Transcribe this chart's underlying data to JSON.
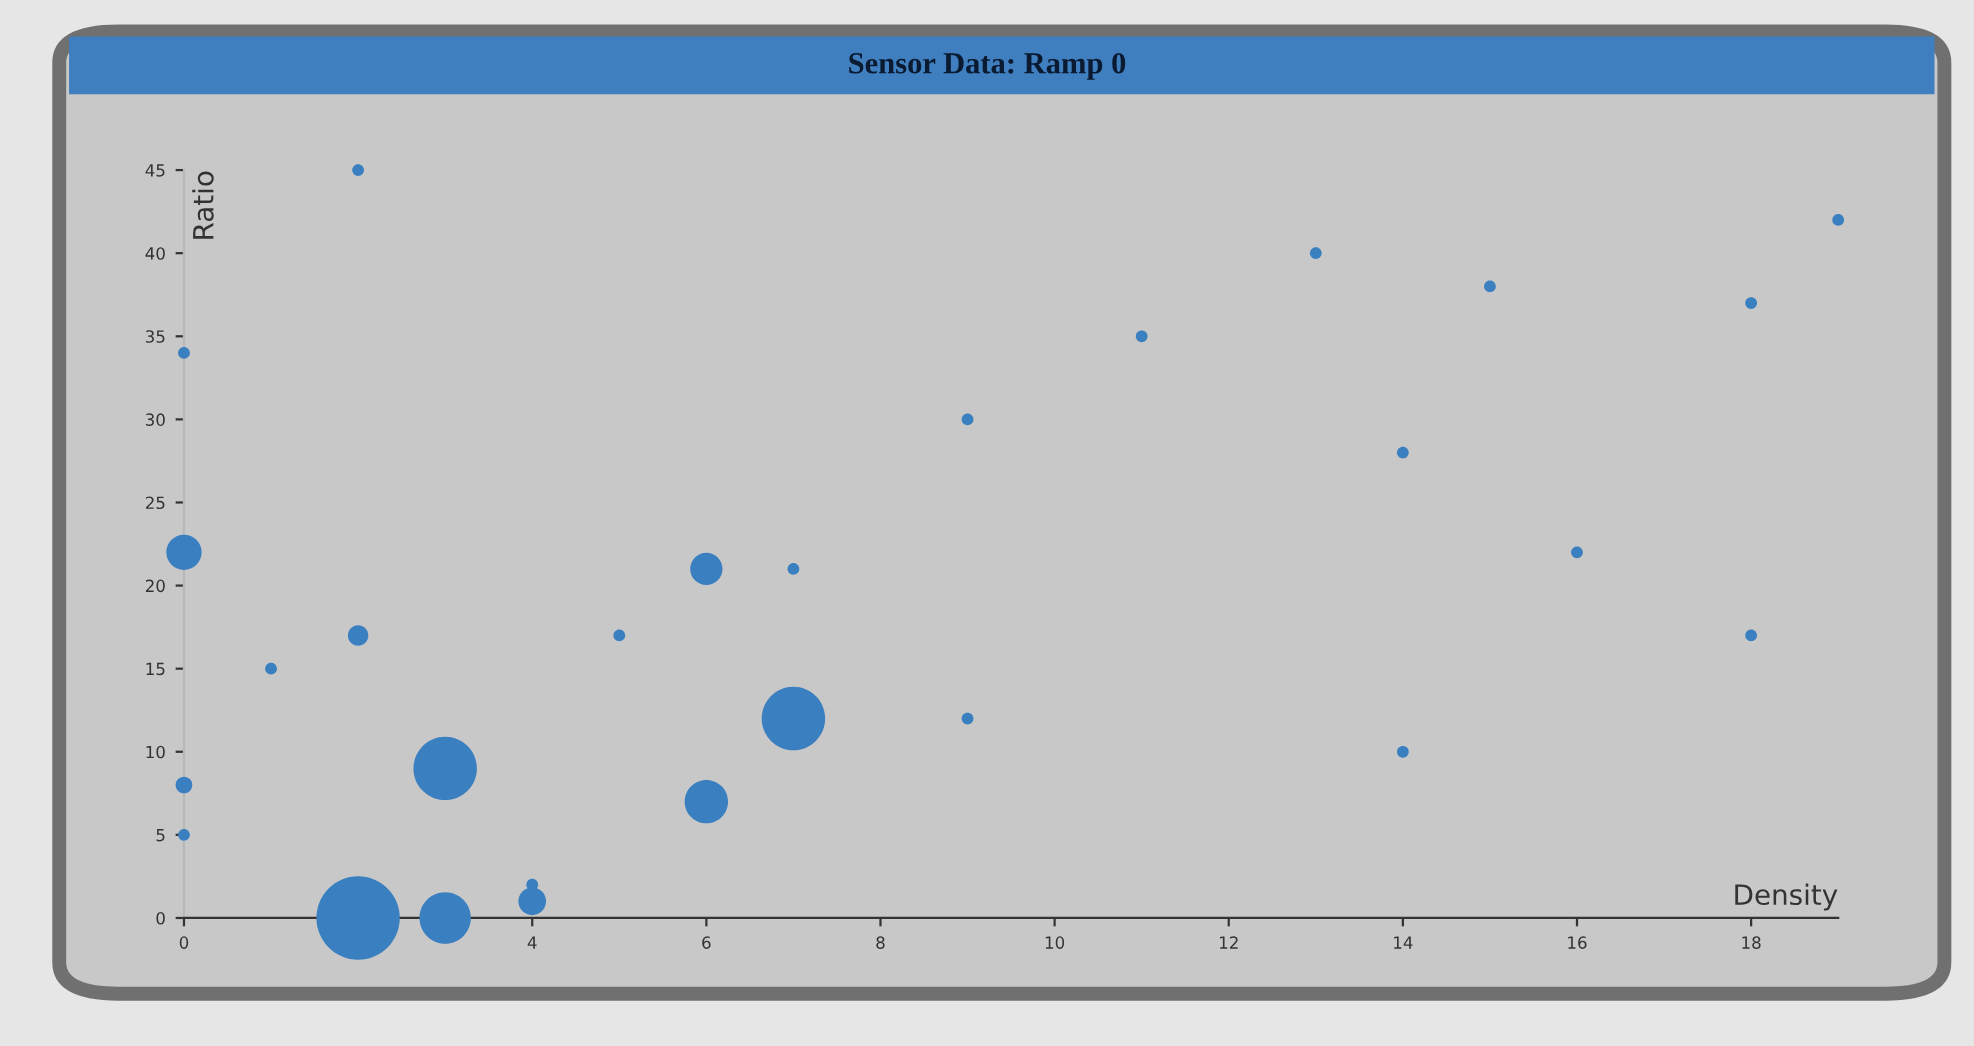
{
  "chart_data": {
    "type": "bubble",
    "title": "Sensor Data: Ramp 0",
    "xlabel": "Density",
    "ylabel": "Ratio",
    "x": [
      2,
      0,
      9,
      0,
      6,
      7,
      2,
      1,
      5,
      7,
      3,
      6,
      0,
      0,
      2,
      3,
      4,
      4,
      11,
      13,
      15,
      18,
      19,
      14,
      16,
      18,
      9,
      14
    ],
    "values": [
      45,
      34,
      30,
      22,
      21,
      21,
      17,
      15,
      17,
      12,
      9,
      7,
      8,
      5,
      0,
      0,
      1,
      2,
      35,
      40,
      38,
      37,
      42,
      28,
      22,
      17,
      12,
      10
    ],
    "sizes": [
      0.02,
      0.02,
      0.02,
      0.18,
      0.15,
      0.02,
      0.06,
      0.02,
      0.02,
      0.58,
      0.58,
      0.27,
      0.04,
      0.02,
      1,
      0.38,
      0.11,
      0.02,
      0.02,
      0.02,
      0.02,
      0.02,
      0.02,
      0.02,
      0.02,
      0.02,
      0.02,
      0.02
    ],
    "color": "#3a7fc0",
    "xlim": [
      0,
      19
    ],
    "ylim": [
      0,
      45
    ],
    "xticks": [
      0,
      4,
      6,
      8,
      10,
      12,
      14,
      16,
      18
    ],
    "yticks": [
      0,
      5,
      10,
      15,
      20,
      25,
      30,
      35,
      40,
      45
    ],
    "grid": false
  }
}
